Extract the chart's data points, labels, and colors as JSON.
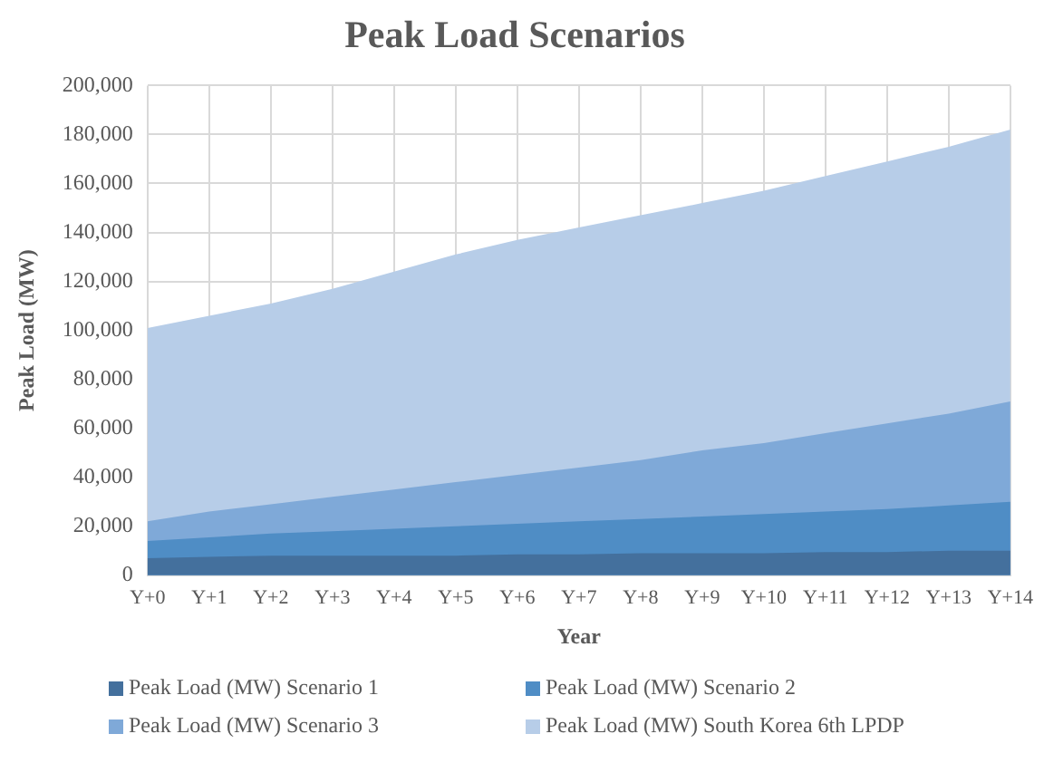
{
  "chart_data": {
    "type": "area",
    "title": "Peak Load Scenarios",
    "xlabel": "Year",
    "ylabel": "Peak Load (MW)",
    "categories": [
      "Y+0",
      "Y+1",
      "Y+2",
      "Y+3",
      "Y+4",
      "Y+5",
      "Y+6",
      "Y+7",
      "Y+8",
      "Y+9",
      "Y+10",
      "Y+11",
      "Y+12",
      "Y+13",
      "Y+14"
    ],
    "series": [
      {
        "name": "Peak Load (MW) Scenario 1",
        "color": "#44709d",
        "values": [
          7000,
          7500,
          8000,
          8000,
          8000,
          8000,
          8500,
          8500,
          9000,
          9000,
          9000,
          9500,
          9500,
          10000,
          10000
        ]
      },
      {
        "name": "Peak Load (MW) Scenario 2",
        "color": "#4f8dc5",
        "values": [
          14000,
          15500,
          17000,
          18000,
          19000,
          20000,
          21000,
          22000,
          23000,
          24000,
          25000,
          26000,
          27000,
          28500,
          30000
        ]
      },
      {
        "name": "Peak Load (MW) Scenario 3",
        "color": "#7fa9d8",
        "values": [
          22000,
          26000,
          29000,
          32000,
          35000,
          38000,
          41000,
          44000,
          47000,
          51000,
          54000,
          58000,
          62000,
          66000,
          71000
        ]
      },
      {
        "name": "Peak Load (MW) South Korea 6th LPDP",
        "color": "#b7cde8",
        "values": [
          101000,
          106000,
          111000,
          117000,
          124000,
          131000,
          137000,
          142000,
          147000,
          152000,
          157000,
          163000,
          169000,
          175000,
          182000
        ]
      }
    ],
    "ylim": [
      0,
      200000
    ],
    "yticks": [
      0,
      {
        "value": 20000,
        "label": "20,000"
      },
      {
        "value": 40000,
        "label": "40,000"
      },
      {
        "value": 60000,
        "label": "60,000"
      },
      {
        "value": 80000,
        "label": "80,000"
      },
      {
        "value": 100000,
        "label": "100,000"
      },
      {
        "value": 120000,
        "label": "120,000"
      },
      {
        "value": 140000,
        "label": "140,000"
      },
      {
        "value": 160000,
        "label": "160,000"
      },
      {
        "value": 180000,
        "label": "180,000"
      },
      {
        "value": 200000,
        "label": "200,000"
      }
    ],
    "grid": true,
    "legend": "bottom",
    "marker": "none"
  }
}
